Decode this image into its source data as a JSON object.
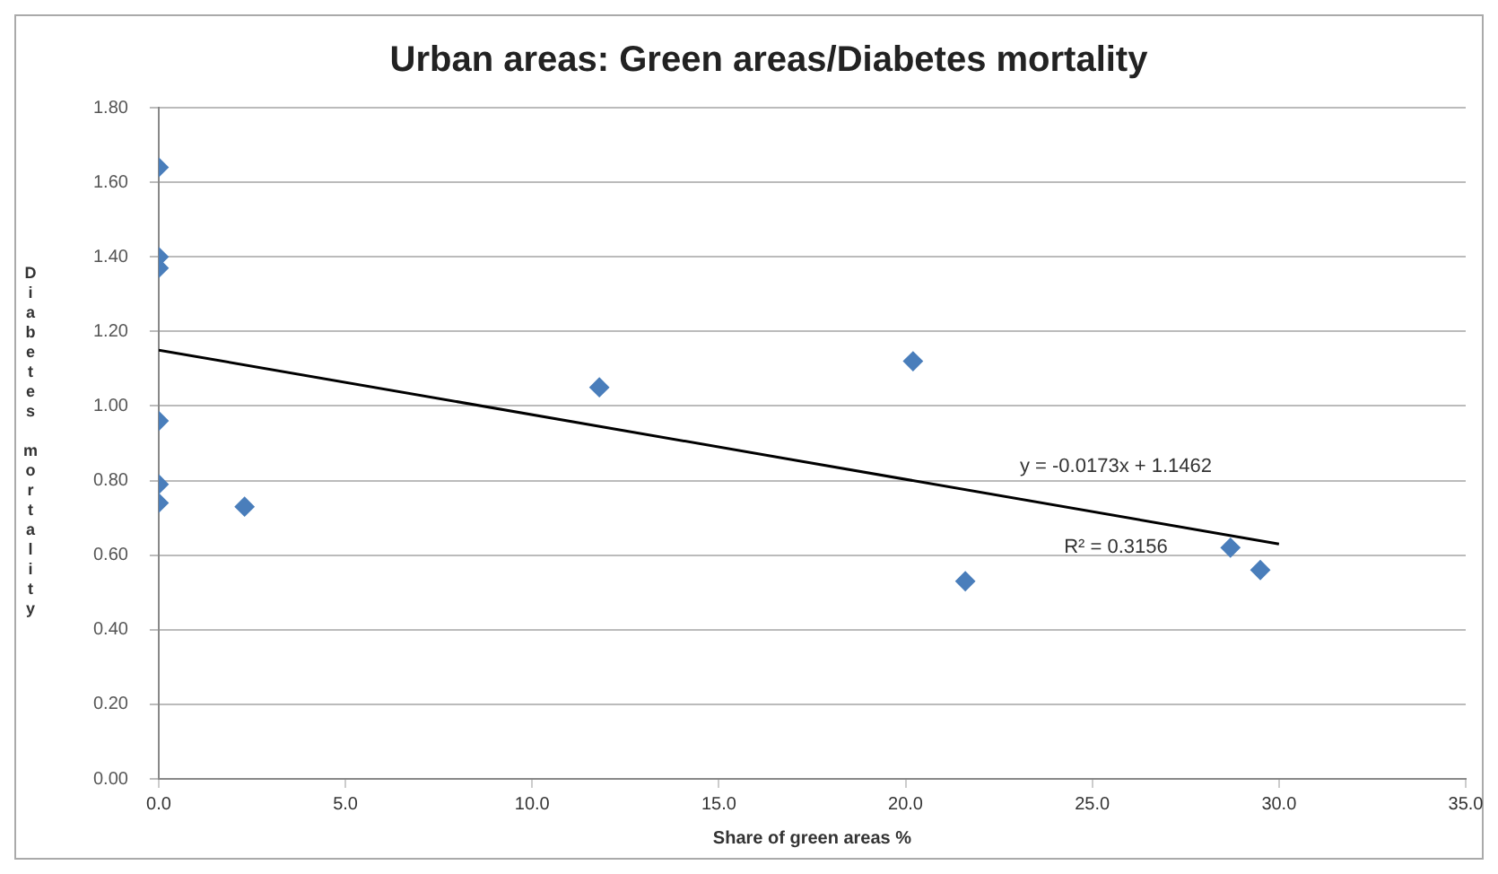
{
  "chart_data": {
    "type": "scatter",
    "title": "Urban areas: Green areas/Diabetes mortality",
    "xlabel": "Share of green areas %",
    "ylabel": "Diabetes mortality",
    "series": [
      {
        "color": "#4a7ebb",
        "x": [
          0,
          0,
          0,
          0,
          0,
          0,
          2.3,
          11.8,
          20.2,
          21.6,
          28.7,
          29.5
        ],
        "values": [
          1.64,
          1.4,
          1.37,
          0.96,
          0.79,
          0.74,
          0.73,
          1.05,
          1.12,
          0.53,
          0.62,
          0.56
        ]
      },
      {
        "type": "line",
        "marker": "none",
        "color": "#000000",
        "x": [
          0,
          30
        ],
        "values": [
          1.15,
          0.63
        ]
      }
    ],
    "xlim": [
      0,
      35
    ],
    "xticks": [
      {
        "value": 0,
        "label": "0.0"
      },
      {
        "value": 5,
        "label": "5.0"
      },
      {
        "value": 10,
        "label": "10.0"
      },
      {
        "value": 15,
        "label": "15.0"
      },
      {
        "value": 20,
        "label": "20.0"
      },
      {
        "value": 25,
        "label": "25.0"
      },
      {
        "value": 30,
        "label": "30.0"
      },
      {
        "value": 35,
        "label": "35.0"
      }
    ],
    "ylim": [
      0,
      1.8
    ],
    "yticks": [
      {
        "value": 0,
        "label": "0.00"
      },
      {
        "value": 0.2,
        "label": "0.20"
      },
      {
        "value": 0.4,
        "label": "0.40"
      },
      {
        "value": 0.6,
        "label": "0.60"
      },
      {
        "value": 0.8,
        "label": "0.80"
      },
      {
        "value": 1,
        "label": "1.00"
      },
      {
        "value": 1.2,
        "label": "1.20"
      },
      {
        "value": 1.4,
        "label": "1.40"
      },
      {
        "value": 1.6,
        "label": "1.60"
      },
      {
        "value": 1.8,
        "label": "1.80"
      }
    ],
    "annotations": [
      "y = -0.0173x + 1.1462",
      "R² = 0.3156"
    ],
    "grid": "y",
    "legend": false,
    "marker": "diamond",
    "line_style": "solid"
  }
}
